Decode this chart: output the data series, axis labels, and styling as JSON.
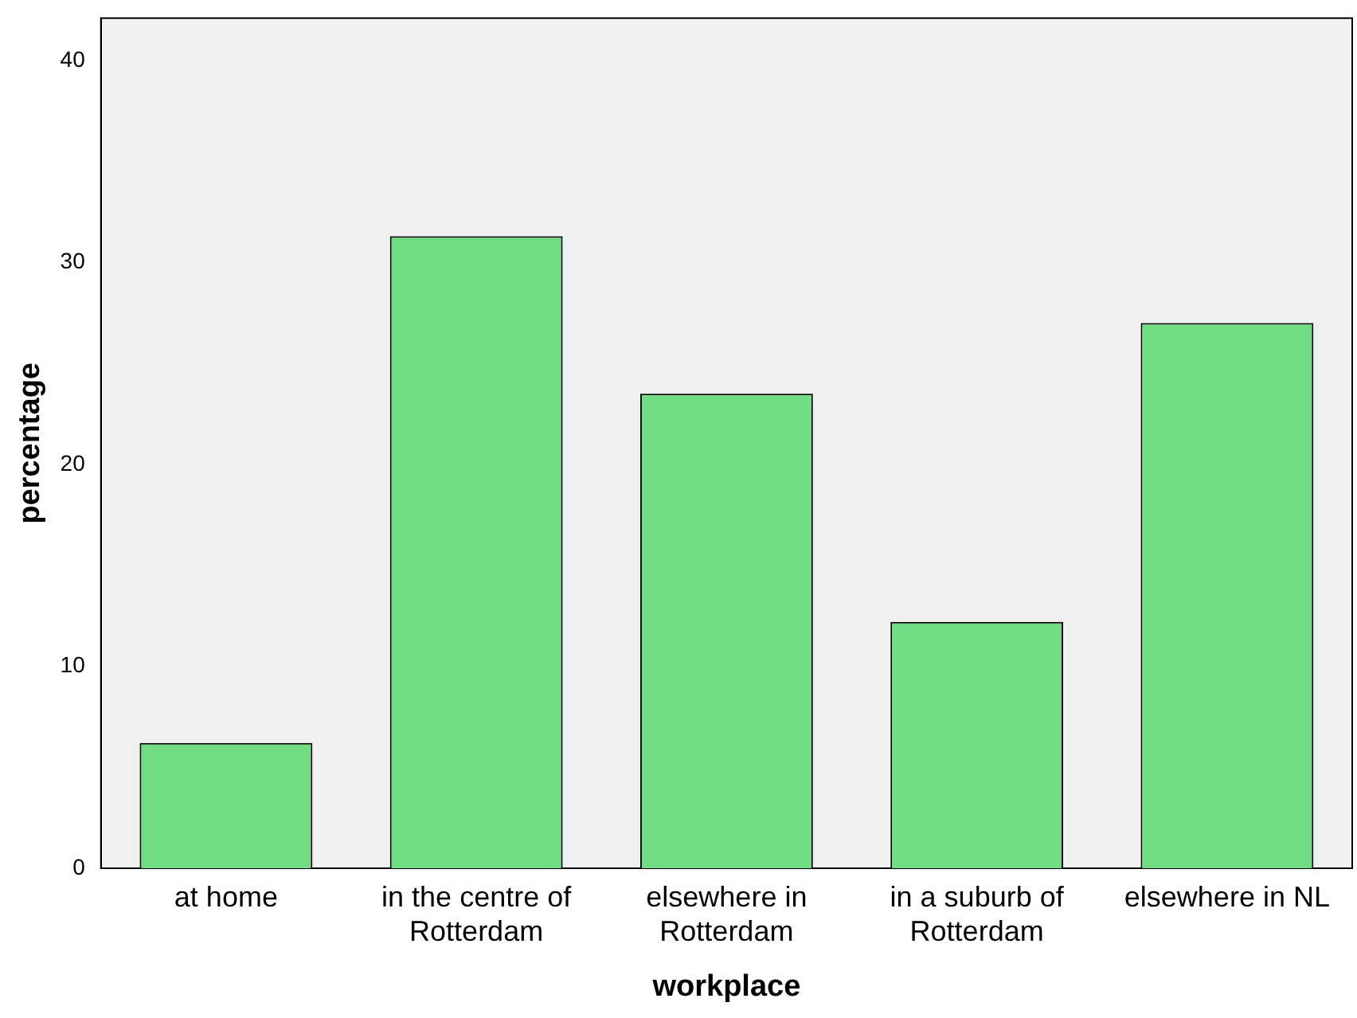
{
  "chart_data": {
    "type": "bar",
    "xlabel": "workplace",
    "ylabel": "percentage",
    "categories": [
      "at home",
      "in the centre of Rotterdam",
      "elsewhere in Rotterdam",
      "in a suburb of Rotterdam",
      "elsewhere in NL"
    ],
    "values": [
      6.2,
      31.3,
      23.5,
      12.2,
      27.0
    ],
    "color": "#70dc84",
    "ylim": [
      0,
      42.1
    ],
    "yticks": [
      0,
      10,
      20,
      30,
      40
    ],
    "grid": false,
    "legend": false
  }
}
